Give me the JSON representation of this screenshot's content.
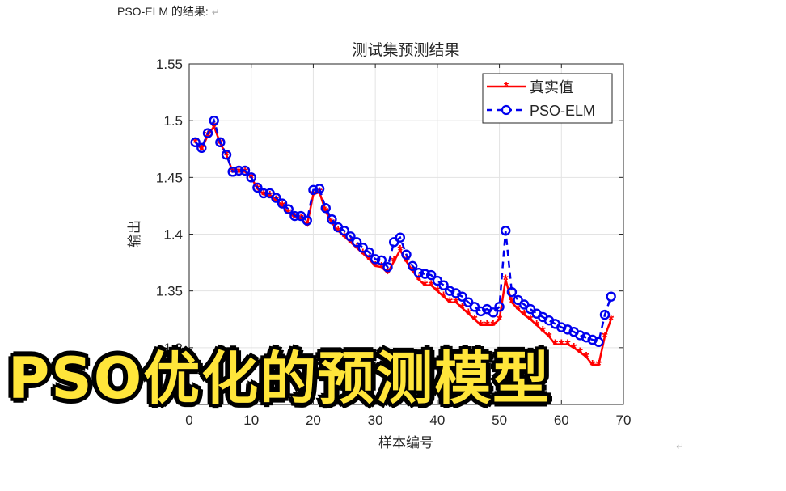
{
  "document": {
    "heading": "PSO-ELM 的结果:",
    "return_mark": "↵"
  },
  "overlay": {
    "caption": "PSO优化的预测模型"
  },
  "colors": {
    "real": "#ff0000",
    "pred": "#0000ee",
    "caption_fill": "#ffe53a",
    "caption_stroke": "#000000"
  },
  "chart_data": {
    "type": "line",
    "title": "测试集预测结果",
    "xlabel": "样本编号",
    "ylabel": "输出",
    "xlim": [
      0,
      70
    ],
    "ylim": [
      1.25,
      1.55
    ],
    "xticks": [
      0,
      10,
      20,
      30,
      40,
      50,
      60,
      70
    ],
    "yticks": [
      1.3,
      1.35,
      1.4,
      1.45,
      1.5,
      1.55
    ],
    "ytick_labels": [
      "1.3",
      "1.35",
      "1.4",
      "1.45",
      "1.5",
      "1.55"
    ],
    "grid": true,
    "legend_position": "upper right",
    "x": [
      1,
      2,
      3,
      4,
      5,
      6,
      7,
      8,
      9,
      10,
      11,
      12,
      13,
      14,
      15,
      16,
      17,
      18,
      19,
      20,
      21,
      22,
      23,
      24,
      25,
      26,
      27,
      28,
      29,
      30,
      31,
      32,
      33,
      34,
      35,
      36,
      37,
      38,
      39,
      40,
      41,
      42,
      43,
      44,
      45,
      46,
      47,
      48,
      49,
      50,
      51,
      52,
      53,
      54,
      55,
      56,
      57,
      58,
      59,
      60,
      61,
      62,
      63,
      64,
      65,
      66,
      67,
      68
    ],
    "series": [
      {
        "name": "真实值",
        "style": "red solid line, asterisk markers",
        "values": [
          1.481,
          1.475,
          1.487,
          1.495,
          1.48,
          1.47,
          1.455,
          1.455,
          1.455,
          1.45,
          1.44,
          1.435,
          1.434,
          1.43,
          1.425,
          1.419,
          1.415,
          1.414,
          1.408,
          1.435,
          1.437,
          1.42,
          1.41,
          1.403,
          1.398,
          1.393,
          1.388,
          1.383,
          1.378,
          1.372,
          1.371,
          1.366,
          1.376,
          1.386,
          1.376,
          1.368,
          1.36,
          1.355,
          1.355,
          1.35,
          1.345,
          1.34,
          1.34,
          1.335,
          1.33,
          1.325,
          1.32,
          1.32,
          1.32,
          1.325,
          1.36,
          1.34,
          1.334,
          1.329,
          1.325,
          1.32,
          1.315,
          1.31,
          1.303,
          1.303,
          1.303,
          1.3,
          1.296,
          1.292,
          1.285,
          1.285,
          1.31,
          1.325
        ]
      },
      {
        "name": "PSO-ELM",
        "style": "blue dashed line, circle markers",
        "values": [
          1.481,
          1.476,
          1.489,
          1.5,
          1.481,
          1.47,
          1.455,
          1.456,
          1.456,
          1.45,
          1.441,
          1.436,
          1.436,
          1.432,
          1.427,
          1.422,
          1.416,
          1.416,
          1.412,
          1.439,
          1.44,
          1.423,
          1.413,
          1.406,
          1.403,
          1.398,
          1.393,
          1.388,
          1.384,
          1.378,
          1.377,
          1.371,
          1.393,
          1.397,
          1.382,
          1.372,
          1.366,
          1.365,
          1.364,
          1.359,
          1.355,
          1.35,
          1.348,
          1.345,
          1.34,
          1.336,
          1.332,
          1.334,
          1.331,
          1.336,
          1.403,
          1.349,
          1.342,
          1.338,
          1.334,
          1.33,
          1.327,
          1.324,
          1.321,
          1.318,
          1.316,
          1.314,
          1.311,
          1.309,
          1.307,
          1.305,
          1.329,
          1.345
        ]
      }
    ]
  }
}
